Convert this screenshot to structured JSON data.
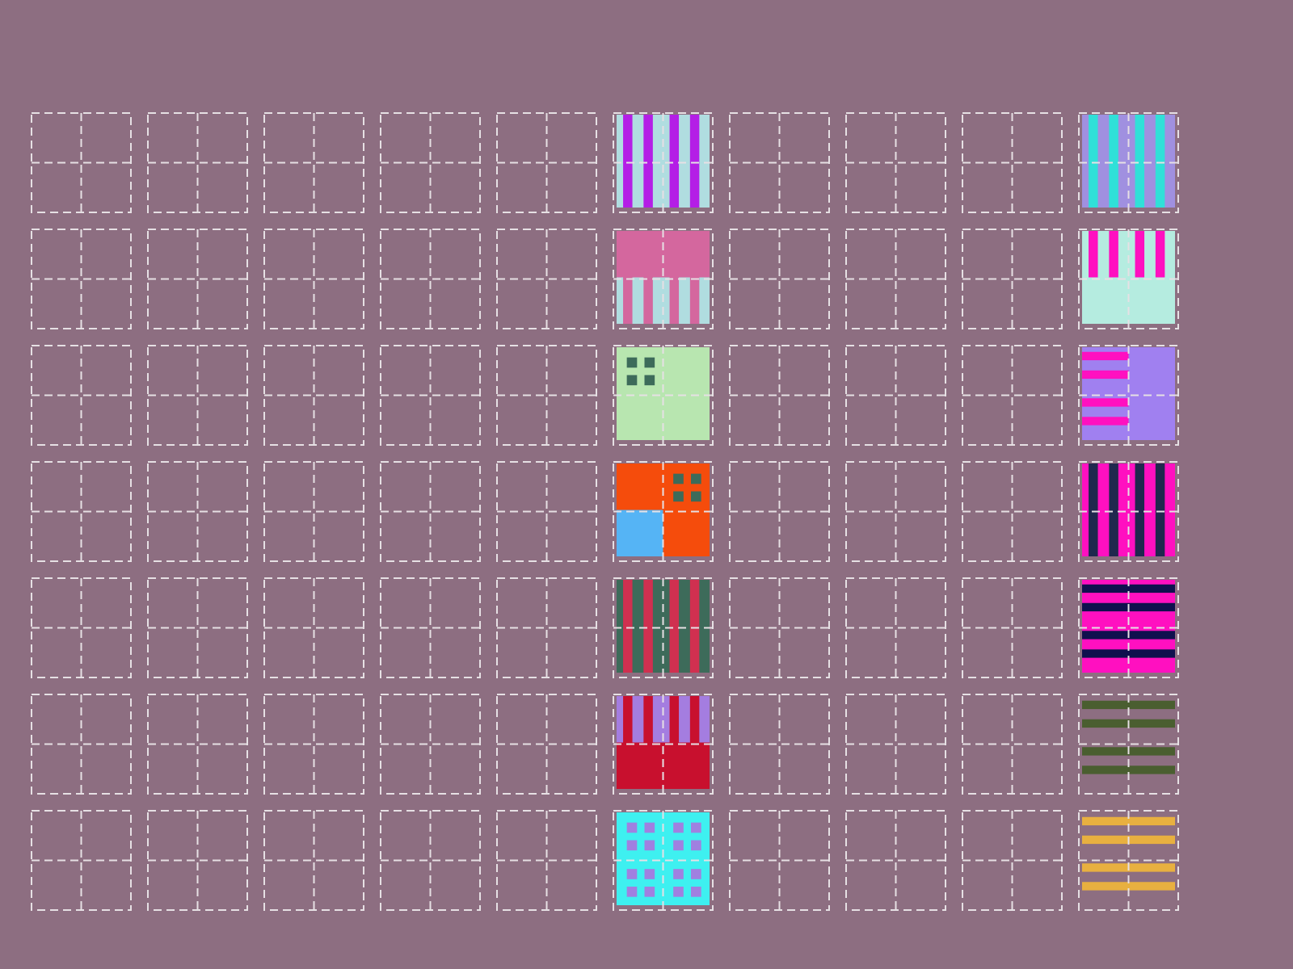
{
  "grid": {
    "rows": 7,
    "columns": 10,
    "tiles": [
      {
        "row": 0,
        "column": 5,
        "quadrants": [
          {
            "kind": "v",
            "bg": "#b0dde0",
            "fg": "#b41ee6"
          },
          {
            "kind": "v",
            "bg": "#b0dde0",
            "fg": "#b41ee6"
          },
          {
            "kind": "v",
            "bg": "#b0dde0",
            "fg": "#b41ee6"
          },
          {
            "kind": "v",
            "bg": "#b0dde0",
            "fg": "#b41ee6"
          }
        ]
      },
      {
        "row": 1,
        "column": 5,
        "quadrants": [
          {
            "kind": "solid",
            "bg": "#d4679e"
          },
          {
            "kind": "solid",
            "bg": "#d4679e"
          },
          {
            "kind": "v",
            "bg": "#b0dde0",
            "fg": "#d4679e"
          },
          {
            "kind": "v",
            "bg": "#b0dde0",
            "fg": "#d4679e"
          }
        ]
      },
      {
        "row": 2,
        "column": 5,
        "quadrants": [
          {
            "kind": "dots",
            "bg": "#b8e6b0",
            "fg": "#3d6b5a"
          },
          {
            "kind": "solid",
            "bg": "#b8e6b0"
          },
          {
            "kind": "solid",
            "bg": "#b8e6b0"
          },
          {
            "kind": "solid",
            "bg": "#b8e6b0"
          }
        ]
      },
      {
        "row": 3,
        "column": 5,
        "quadrants": [
          {
            "kind": "solid",
            "bg": "#f54c0c"
          },
          {
            "kind": "dots",
            "bg": "#f54c0c",
            "fg": "#3d6b5a"
          },
          {
            "kind": "solid",
            "bg": "#55b4f5"
          },
          {
            "kind": "solid",
            "bg": "#f54c0c"
          }
        ]
      },
      {
        "row": 4,
        "column": 5,
        "quadrants": [
          {
            "kind": "v",
            "bg": "#3d6b5a",
            "fg": "#d03050"
          },
          {
            "kind": "v",
            "bg": "#3d6b5a",
            "fg": "#d03050"
          },
          {
            "kind": "v",
            "bg": "#3d6b5a",
            "fg": "#d03050"
          },
          {
            "kind": "v",
            "bg": "#3d6b5a",
            "fg": "#d03050"
          }
        ]
      },
      {
        "row": 5,
        "column": 5,
        "quadrants": [
          {
            "kind": "v",
            "bg": "#a47de0",
            "fg": "#c8102e"
          },
          {
            "kind": "v",
            "bg": "#a47de0",
            "fg": "#c8102e"
          },
          {
            "kind": "solid",
            "bg": "#c8102e"
          },
          {
            "kind": "solid",
            "bg": "#c8102e"
          }
        ]
      },
      {
        "row": 6,
        "column": 5,
        "quadrants": [
          {
            "kind": "dots",
            "bg": "#3ef0f0",
            "fg": "#a080e0"
          },
          {
            "kind": "dots",
            "bg": "#3ef0f0",
            "fg": "#a080e0"
          },
          {
            "kind": "dots",
            "bg": "#3ef0f0",
            "fg": "#a080e0"
          },
          {
            "kind": "dots",
            "bg": "#3ef0f0",
            "fg": "#a080e0"
          }
        ]
      },
      {
        "row": 0,
        "column": 9,
        "quadrants": [
          {
            "kind": "v",
            "bg": "#a090e0",
            "fg": "#30e0d8"
          },
          {
            "kind": "v",
            "bg": "#a090e0",
            "fg": "#30e0d8"
          },
          {
            "kind": "v",
            "bg": "#a090e0",
            "fg": "#30e0d8"
          },
          {
            "kind": "v",
            "bg": "#a090e0",
            "fg": "#30e0d8"
          }
        ]
      },
      {
        "row": 1,
        "column": 9,
        "quadrants": [
          {
            "kind": "v",
            "bg": "#b5ece0",
            "fg": "#ff10c0"
          },
          {
            "kind": "v",
            "bg": "#b5ece0",
            "fg": "#ff10c0"
          },
          {
            "kind": "solid",
            "bg": "#b5ece0"
          },
          {
            "kind": "solid",
            "bg": "#b5ece0"
          }
        ]
      },
      {
        "row": 2,
        "column": 9,
        "quadrants": [
          {
            "kind": "h",
            "bg": "#a080f0",
            "fg": "#ff10c0"
          },
          {
            "kind": "solid",
            "bg": "#a080f0"
          },
          {
            "kind": "h",
            "bg": "#a080f0",
            "fg": "#ff10c0"
          },
          {
            "kind": "solid",
            "bg": "#a080f0"
          }
        ]
      },
      {
        "row": 3,
        "column": 9,
        "quadrants": [
          {
            "kind": "v",
            "bg": "#ff10c0",
            "fg": "#20284e"
          },
          {
            "kind": "v",
            "bg": "#ff10c0",
            "fg": "#20284e"
          },
          {
            "kind": "v",
            "bg": "#ff10c0",
            "fg": "#20284e"
          },
          {
            "kind": "v",
            "bg": "#ff10c0",
            "fg": "#20284e"
          }
        ]
      },
      {
        "row": 4,
        "column": 9,
        "quadrants": [
          {
            "kind": "h",
            "bg": "#ff10c0",
            "fg": "#10104e"
          },
          {
            "kind": "h",
            "bg": "#ff10c0",
            "fg": "#10104e"
          },
          {
            "kind": "h",
            "bg": "#ff10c0",
            "fg": "#10104e"
          },
          {
            "kind": "h",
            "bg": "#ff10c0",
            "fg": "#10104e"
          }
        ]
      },
      {
        "row": 5,
        "column": 9,
        "quadrants": [
          {
            "kind": "h",
            "fg": "#4a5e30"
          },
          {
            "kind": "h",
            "fg": "#4a5e30"
          },
          {
            "kind": "h",
            "fg": "#4a5e30"
          },
          {
            "kind": "h",
            "fg": "#4a5e30"
          }
        ]
      },
      {
        "row": 6,
        "column": 9,
        "quadrants": [
          {
            "kind": "h",
            "fg": "#e8b040"
          },
          {
            "kind": "h",
            "fg": "#e8b040"
          },
          {
            "kind": "h",
            "fg": "#e8b040"
          },
          {
            "kind": "h",
            "fg": "#e8b040"
          }
        ]
      }
    ]
  }
}
